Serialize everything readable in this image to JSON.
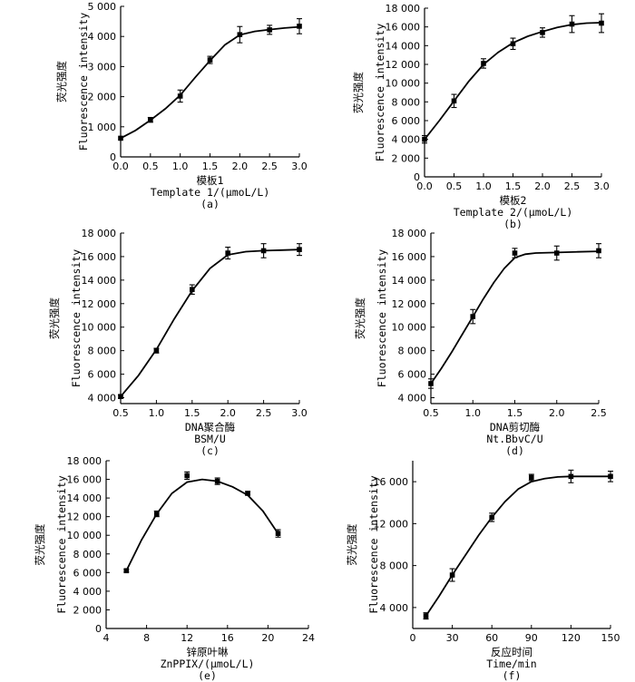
{
  "chart_data": [
    {
      "id": "a",
      "type": "scatter",
      "panel_tag": "(a)",
      "xlabel_zh": "模板1",
      "xlabel_en": "Template 1/(μmoL/L)",
      "ylabel_zh": "荧光强度",
      "ylabel_en": "Fluorescence intensity",
      "xlim": [
        0,
        3.0
      ],
      "ylim": [
        0,
        5000
      ],
      "xticks": [
        0,
        0.5,
        1.0,
        1.5,
        2.0,
        2.5,
        3.0
      ],
      "xtick_labels": [
        "0.0",
        "0.5",
        "1.0",
        "1.5",
        "2.0",
        "2.5",
        "3.0"
      ],
      "yticks": [
        0,
        1000,
        2000,
        3000,
        4000,
        5000
      ],
      "ytick_labels": [
        "0",
        "1 000",
        "2 000",
        "3 000",
        "4 000",
        "5 000"
      ],
      "x": [
        0,
        0.5,
        1.0,
        1.5,
        2.0,
        2.5,
        3.0
      ],
      "y": [
        620,
        1230,
        2020,
        3220,
        4060,
        4220,
        4340
      ],
      "err": [
        0,
        80,
        200,
        120,
        270,
        150,
        250
      ],
      "curve": [
        [
          0,
          620
        ],
        [
          0.25,
          880
        ],
        [
          0.5,
          1220
        ],
        [
          0.75,
          1600
        ],
        [
          1.0,
          2050
        ],
        [
          1.25,
          2640
        ],
        [
          1.5,
          3200
        ],
        [
          1.75,
          3720
        ],
        [
          2.0,
          4050
        ],
        [
          2.25,
          4170
        ],
        [
          2.5,
          4230
        ],
        [
          2.75,
          4280
        ],
        [
          3.0,
          4320
        ]
      ]
    },
    {
      "id": "b",
      "type": "scatter",
      "panel_tag": "(b)",
      "xlabel_zh": "模板2",
      "xlabel_en": "Template 2/(μmoL/L)",
      "ylabel_zh": "荧光强度",
      "ylabel_en": "Fluorescence intensity",
      "xlim": [
        0,
        3.0
      ],
      "ylim": [
        0,
        18000
      ],
      "xticks": [
        0,
        0.5,
        1.0,
        1.5,
        2.0,
        2.5,
        3.0
      ],
      "xtick_labels": [
        "0.0",
        "0.5",
        "1.0",
        "1.5",
        "2.0",
        "2.5",
        "3.0"
      ],
      "yticks": [
        0,
        2000,
        4000,
        6000,
        8000,
        10000,
        12000,
        14000,
        16000,
        18000
      ],
      "ytick_labels": [
        "0",
        "2 000",
        "4 000",
        "6 000",
        "8 000",
        "10 000",
        "12 000",
        "14 000",
        "16 000",
        "18 000"
      ],
      "x": [
        0,
        0.5,
        1.0,
        1.5,
        2.0,
        2.5,
        3.0
      ],
      "y": [
        4000,
        8100,
        12100,
        14200,
        15400,
        16300,
        16400
      ],
      "err": [
        400,
        700,
        500,
        600,
        500,
        900,
        1000
      ],
      "curve": [
        [
          0,
          4000
        ],
        [
          0.25,
          6000
        ],
        [
          0.5,
          8100
        ],
        [
          0.75,
          10200
        ],
        [
          1.0,
          12000
        ],
        [
          1.25,
          13300
        ],
        [
          1.5,
          14300
        ],
        [
          1.75,
          15000
        ],
        [
          2.0,
          15500
        ],
        [
          2.25,
          15950
        ],
        [
          2.5,
          16250
        ],
        [
          2.75,
          16400
        ],
        [
          3.0,
          16450
        ]
      ]
    },
    {
      "id": "c",
      "type": "scatter",
      "panel_tag": "(c)",
      "xlabel_zh": "DNA聚合酶",
      "xlabel_en": "BSM/U",
      "ylabel_zh": "荧光强度",
      "ylabel_en": "Fluorescence intensity",
      "xlim": [
        0.5,
        3.0
      ],
      "ylim": [
        3500,
        18000
      ],
      "xticks": [
        0.5,
        1.0,
        1.5,
        2.0,
        2.5,
        3.0
      ],
      "xtick_labels": [
        "0.5",
        "1.0",
        "1.5",
        "2.0",
        "2.5",
        "3.0"
      ],
      "yticks": [
        4000,
        6000,
        8000,
        10000,
        12000,
        14000,
        16000,
        18000
      ],
      "ytick_labels": [
        "4 000",
        "6 000",
        "8 000",
        "10 000",
        "12 000",
        "14 000",
        "16 000",
        "18 000"
      ],
      "x": [
        0.5,
        1.0,
        1.5,
        2.0,
        2.5,
        3.0
      ],
      "y": [
        4100,
        8000,
        13200,
        16300,
        16500,
        16600
      ],
      "err": [
        150,
        200,
        400,
        500,
        600,
        500
      ],
      "curve": [
        [
          0.5,
          4100
        ],
        [
          0.75,
          5900
        ],
        [
          1.0,
          8100
        ],
        [
          1.25,
          10700
        ],
        [
          1.5,
          13100
        ],
        [
          1.75,
          15000
        ],
        [
          2.0,
          16150
        ],
        [
          2.25,
          16420
        ],
        [
          2.5,
          16500
        ],
        [
          2.75,
          16550
        ],
        [
          3.0,
          16600
        ]
      ]
    },
    {
      "id": "d",
      "type": "scatter",
      "panel_tag": "(d)",
      "xlabel_zh": "DNA剪切酶",
      "xlabel_en": "Nt.BbvC/U",
      "ylabel_zh": "荧光强度",
      "ylabel_en": "Fluorescence intensity",
      "xlim": [
        0.5,
        2.5
      ],
      "ylim": [
        3500,
        18000
      ],
      "xticks": [
        0.5,
        1.0,
        1.5,
        2.0,
        2.5
      ],
      "xtick_labels": [
        "0.5",
        "1.0",
        "1.5",
        "2.0",
        "2.5"
      ],
      "yticks": [
        4000,
        6000,
        8000,
        10000,
        12000,
        14000,
        16000,
        18000
      ],
      "ytick_labels": [
        "4 000",
        "6 000",
        "8 000",
        "10 000",
        "12 000",
        "14 000",
        "16 000",
        "18 000"
      ],
      "x": [
        0.5,
        1.0,
        1.5,
        2.0,
        2.5
      ],
      "y": [
        5200,
        10900,
        16300,
        16300,
        16500
      ],
      "err": [
        400,
        600,
        400,
        600,
        600
      ],
      "curve": [
        [
          0.5,
          5200
        ],
        [
          0.625,
          6500
        ],
        [
          0.75,
          7900
        ],
        [
          0.875,
          9400
        ],
        [
          1.0,
          10900
        ],
        [
          1.125,
          12400
        ],
        [
          1.25,
          13800
        ],
        [
          1.375,
          15000
        ],
        [
          1.5,
          15900
        ],
        [
          1.625,
          16200
        ],
        [
          1.75,
          16300
        ],
        [
          2.0,
          16350
        ],
        [
          2.25,
          16400
        ],
        [
          2.5,
          16450
        ]
      ]
    },
    {
      "id": "e",
      "type": "scatter",
      "panel_tag": "(e)",
      "xlabel_zh": "锌原叶啉",
      "xlabel_en": "ZnPPIX/(μmoL/L)",
      "ylabel_zh": "荧光强度",
      "ylabel_en": "Fluorescence intensity",
      "xlim": [
        4,
        24
      ],
      "ylim": [
        0,
        18000
      ],
      "xticks": [
        4,
        8,
        12,
        16,
        20,
        24
      ],
      "xtick_labels": [
        "4",
        "8",
        "12",
        "16",
        "20",
        "24"
      ],
      "yticks": [
        0,
        2000,
        4000,
        6000,
        8000,
        10000,
        12000,
        14000,
        16000,
        18000
      ],
      "ytick_labels": [
        "0",
        "2 000",
        "4 000",
        "6 000",
        "8 000",
        "10 000",
        "12 000",
        "14 000",
        "16 000",
        "18 000"
      ],
      "x": [
        6,
        9,
        12,
        15,
        18,
        21
      ],
      "y": [
        6200,
        12300,
        16400,
        15800,
        14500,
        10200
      ],
      "err": [
        150,
        300,
        400,
        350,
        200,
        400
      ],
      "curve": [
        [
          6,
          6200
        ],
        [
          7.5,
          9500
        ],
        [
          9,
          12300
        ],
        [
          10.5,
          14500
        ],
        [
          12,
          15700
        ],
        [
          13.5,
          16000
        ],
        [
          15,
          15800
        ],
        [
          16.5,
          15200
        ],
        [
          18,
          14300
        ],
        [
          19.5,
          12600
        ],
        [
          21,
          10200
        ]
      ]
    },
    {
      "id": "f",
      "type": "scatter",
      "panel_tag": "(f)",
      "xlabel_zh": "反应时间",
      "xlabel_en": "Time/min",
      "ylabel_zh": "荧光强度",
      "ylabel_en": "Fluorescence intensity",
      "xlim": [
        0,
        150
      ],
      "ylim": [
        2000,
        18000
      ],
      "xticks": [
        0,
        30,
        60,
        90,
        120,
        150
      ],
      "xtick_labels": [
        "0",
        "30",
        "60",
        "90",
        "120",
        "150"
      ],
      "yticks": [
        4000,
        8000,
        12000,
        16000
      ],
      "ytick_labels": [
        "4 000",
        "8 000",
        "12 000",
        "16 000"
      ],
      "x": [
        10,
        30,
        60,
        90,
        120,
        150
      ],
      "y": [
        3200,
        7100,
        12600,
        16400,
        16500,
        16500
      ],
      "err": [
        300,
        600,
        400,
        300,
        600,
        500
      ],
      "curve": [
        [
          10,
          3200
        ],
        [
          20,
          5100
        ],
        [
          30,
          7100
        ],
        [
          40,
          9000
        ],
        [
          50,
          10900
        ],
        [
          60,
          12600
        ],
        [
          70,
          14100
        ],
        [
          80,
          15300
        ],
        [
          90,
          16000
        ],
        [
          100,
          16300
        ],
        [
          110,
          16450
        ],
        [
          120,
          16500
        ],
        [
          135,
          16500
        ],
        [
          150,
          16500
        ]
      ]
    }
  ]
}
